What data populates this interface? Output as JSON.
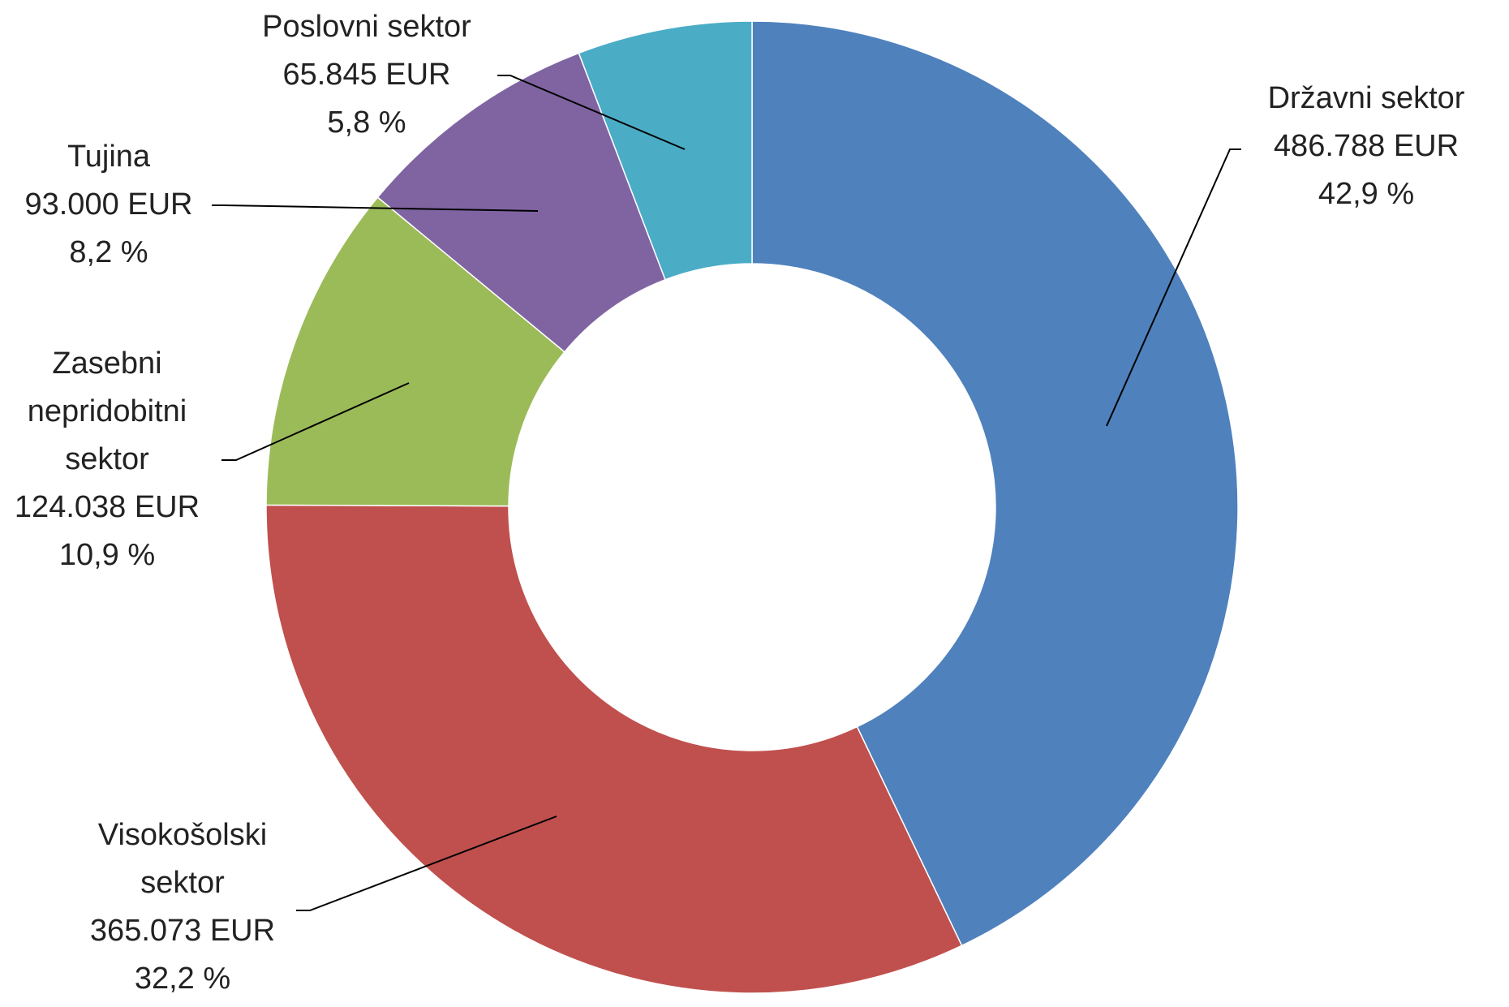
{
  "chart_data": {
    "type": "donut",
    "categories": [
      "Državni sektor",
      "Visokošolski sektor",
      "Zasebni nepridobitni sektor",
      "Tujina",
      "Poslovni sektor"
    ],
    "values": [
      486788,
      365073,
      124038,
      93000,
      65845
    ],
    "value_labels": [
      "486.788 EUR",
      "365.073 EUR",
      "124.038 EUR",
      "93.000 EUR",
      "65.845 EUR"
    ],
    "percent_labels": [
      "42,9 %",
      "32,2 %",
      "10,9 %",
      "8,2 %",
      "5,8 %"
    ],
    "colors": [
      "#4f81bd",
      "#c0504d",
      "#9bbb59",
      "#8064a2",
      "#4bacc6"
    ]
  }
}
